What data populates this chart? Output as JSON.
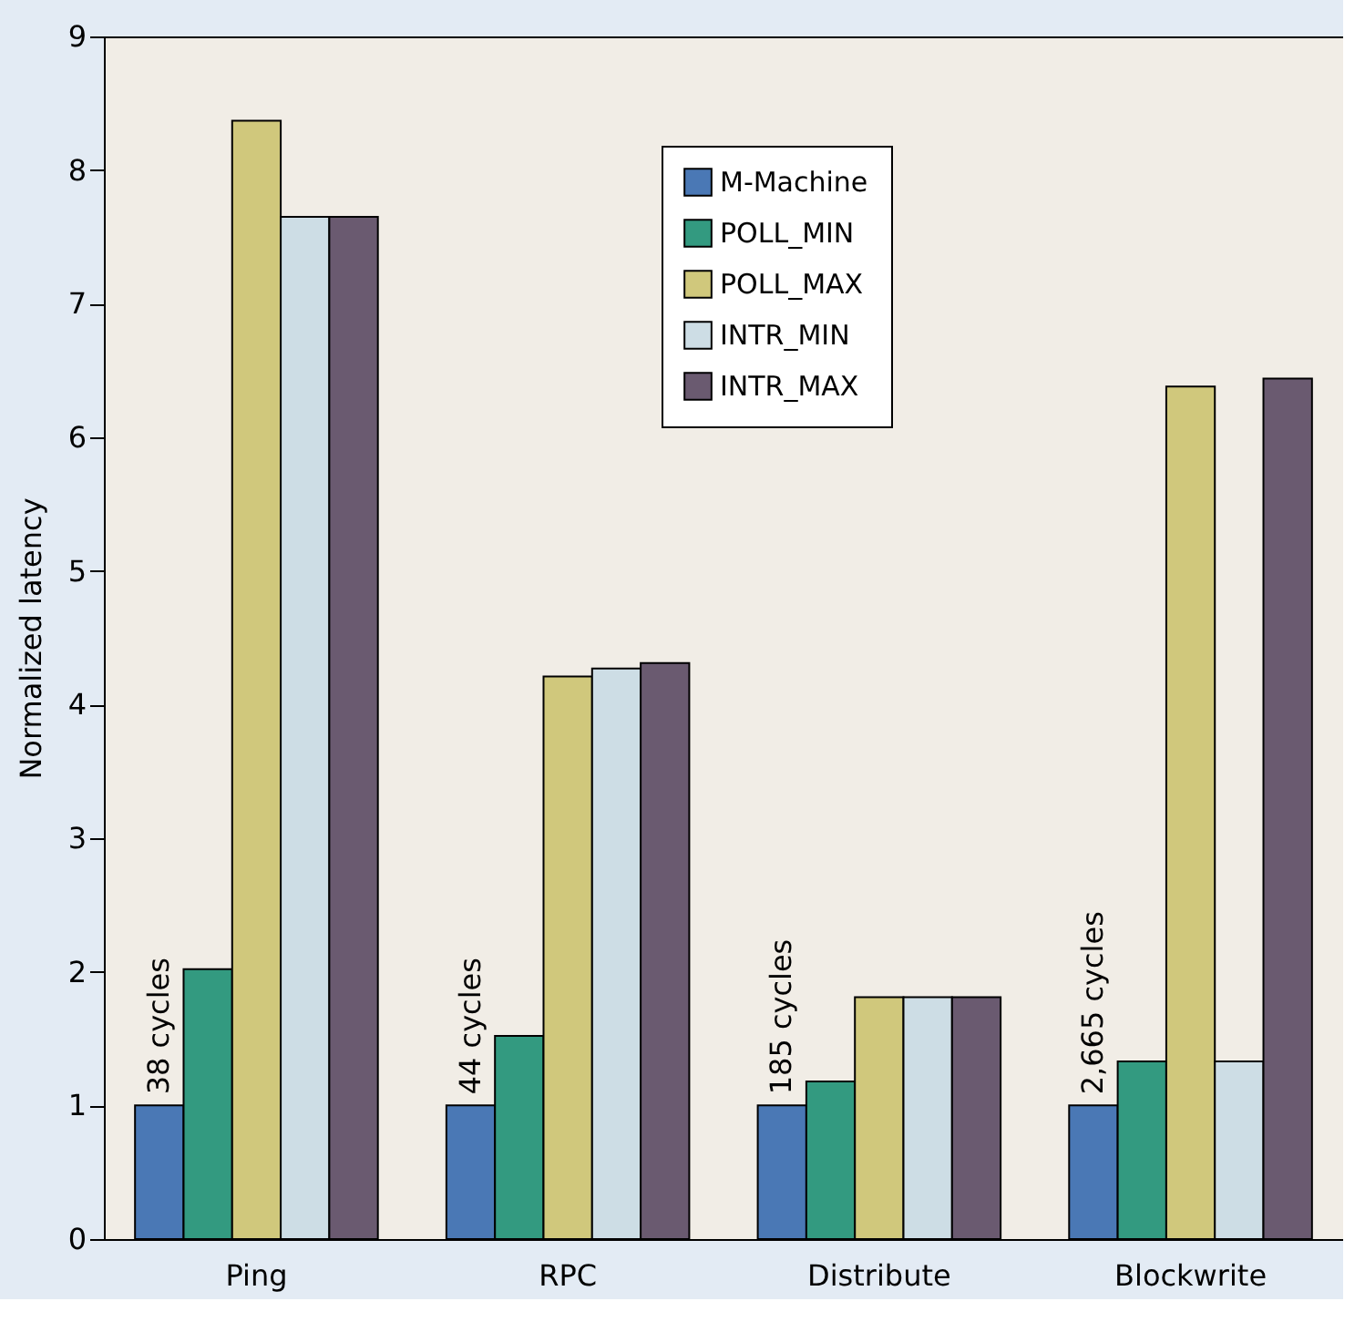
{
  "chart_data": {
    "type": "bar",
    "ylabel": "Normalized latency",
    "categories": [
      "Ping",
      "RPC",
      "Distribute",
      "Blockwrite"
    ],
    "series": [
      {
        "name": "M-Machine",
        "color": "#4a78b5",
        "values": [
          1.0,
          1.0,
          1.0,
          1.0
        ]
      },
      {
        "name": "POLL_MIN",
        "color": "#339a80",
        "values": [
          2.02,
          1.52,
          1.18,
          1.33
        ]
      },
      {
        "name": "POLL_MAX",
        "color": "#d0c87c",
        "values": [
          8.37,
          4.21,
          1.81,
          6.38
        ]
      },
      {
        "name": "INTR_MIN",
        "color": "#cddde5",
        "values": [
          7.65,
          4.27,
          1.81,
          1.33
        ]
      },
      {
        "name": "INTR_MAX",
        "color": "#6a5a70",
        "values": [
          7.65,
          4.31,
          1.81,
          6.44
        ]
      }
    ],
    "annotations": [
      "38 cycles",
      "44 cycles",
      "185 cycles",
      "2,665 cycles"
    ],
    "ylim": [
      0,
      9
    ],
    "yticks": [
      0,
      1,
      2,
      3,
      4,
      5,
      6,
      7,
      8,
      9
    ],
    "grid": false,
    "legend": "top"
  }
}
